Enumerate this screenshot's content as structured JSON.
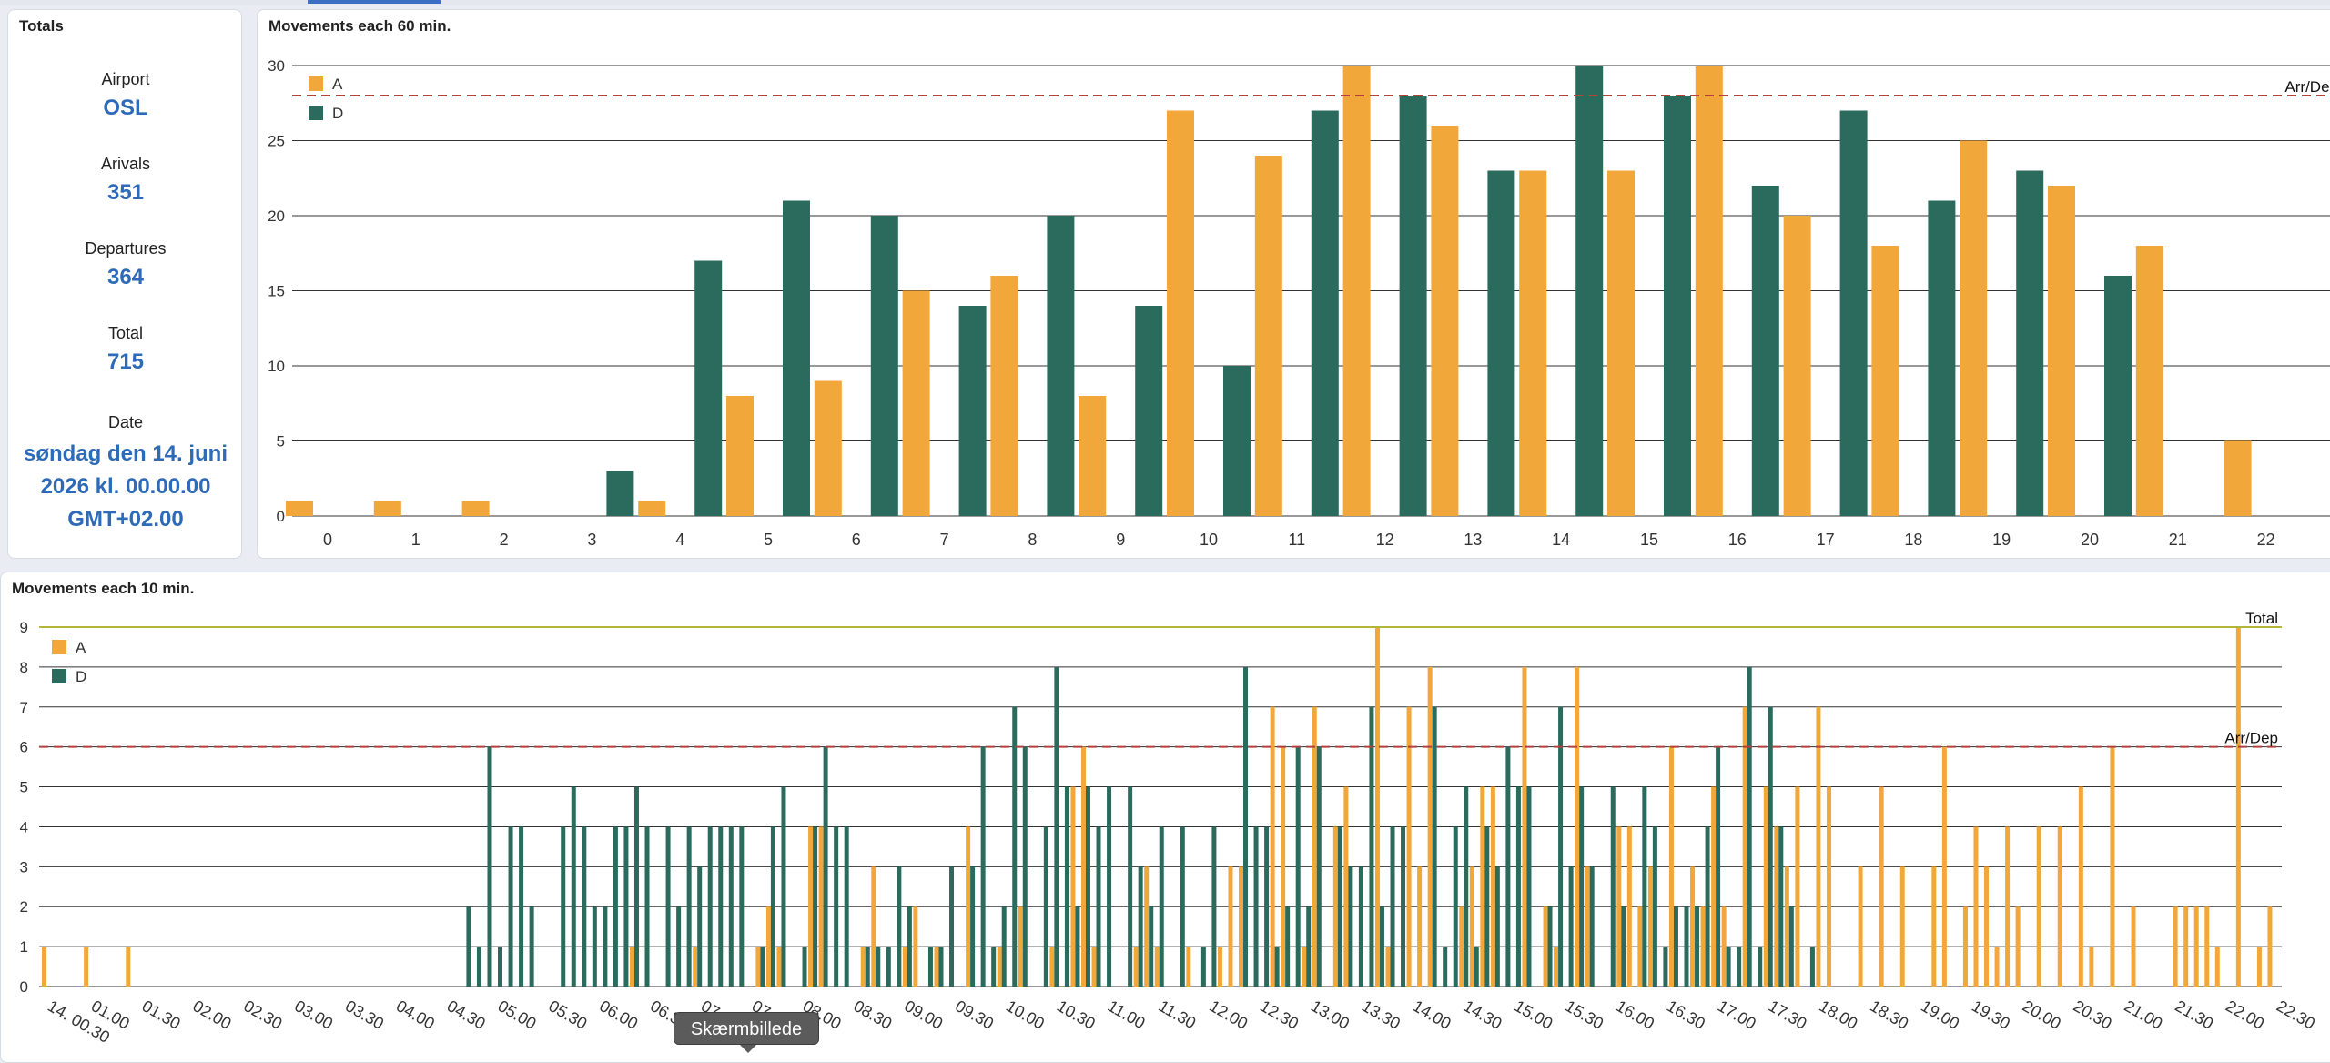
{
  "totals": {
    "title": "Totals",
    "airport_label": "Airport",
    "airport_value": "OSL",
    "arrivals_label": "Arivals",
    "arrivals_value": "351",
    "departures_label": "Departures",
    "departures_value": "364",
    "total_label": "Total",
    "total_value": "715",
    "date_label": "Date",
    "date_line1": "søndag den 14. juni",
    "date_line2": "2026 kl. 00.00.00",
    "date_line3": "GMT+02.00"
  },
  "hourly_title": "Movements each 60 min.",
  "tenmin_title": "Movements each 10 min.",
  "tooltip": {
    "label": "Skærmbillede"
  },
  "chart_data": [
    {
      "type": "bar",
      "title": "Movements each 60 min.",
      "categories": [
        "0",
        "1",
        "2",
        "3",
        "4",
        "5",
        "6",
        "7",
        "8",
        "9",
        "10",
        "11",
        "12",
        "13",
        "14",
        "15",
        "16",
        "17",
        "18",
        "19",
        "20",
        "21",
        "22"
      ],
      "series": [
        {
          "name": "A",
          "values": [
            1,
            1,
            1,
            0,
            1,
            8,
            9,
            15,
            16,
            8,
            27,
            24,
            30,
            26,
            23,
            23,
            30,
            20,
            18,
            25,
            22,
            18,
            5
          ]
        },
        {
          "name": "D",
          "values": [
            0,
            0,
            0,
            3,
            17,
            21,
            20,
            14,
            20,
            14,
            10,
            27,
            28,
            23,
            30,
            28,
            22,
            27,
            21,
            23,
            16,
            0,
            0
          ]
        }
      ],
      "ylim": [
        0,
        30
      ],
      "yticks": [
        0,
        5,
        10,
        15,
        20,
        25,
        30
      ],
      "reference_lines": [
        {
          "label": "Arr/Dep",
          "value": 28,
          "style": "dashed",
          "color": "#b0413e"
        }
      ],
      "legend_position": "top-left",
      "colors": {
        "A": "#f2a73b",
        "D": "#2b6b5e"
      },
      "grid": true
    },
    {
      "type": "bar",
      "title": "Movements each 10 min.",
      "x_labels": [
        "14. 00.30",
        "01.00",
        "01.30",
        "02.00",
        "02.30",
        "03.00",
        "03.30",
        "04.00",
        "04.30",
        "05.00",
        "05.30",
        "06.00",
        "06.30",
        "07.00",
        "07.30",
        "08.00",
        "08.30",
        "09.00",
        "09.30",
        "10.00",
        "10.30",
        "11.00",
        "11.30",
        "12.00",
        "12.30",
        "13.00",
        "13.30",
        "14.00",
        "14.30",
        "15.00",
        "15.30",
        "16.00",
        "16.30",
        "17.00",
        "17.30",
        "18.00",
        "18.30",
        "19.00",
        "19.30",
        "20.00",
        "20.30",
        "21.00",
        "21.30",
        "22.00",
        "22.30"
      ],
      "series": [
        {
          "name": "A",
          "values": [
            1,
            0,
            0,
            0,
            1,
            0,
            0,
            0,
            1,
            0,
            0,
            0,
            0,
            0,
            0,
            0,
            0,
            0,
            0,
            0,
            0,
            0,
            0,
            0,
            0,
            0,
            0,
            0,
            0,
            0,
            0,
            0,
            0,
            0,
            0,
            0,
            0,
            0,
            0,
            0,
            0,
            0,
            0,
            0,
            0,
            0,
            0,
            0,
            0,
            0,
            0,
            0,
            0,
            0,
            0,
            0,
            1,
            0,
            0,
            0,
            0,
            0,
            1,
            0,
            0,
            0,
            0,
            0,
            1,
            2,
            1,
            0,
            0,
            4,
            4,
            0,
            0,
            0,
            1,
            3,
            0,
            0,
            1,
            2,
            0,
            1,
            0,
            0,
            4,
            0,
            0,
            1,
            0,
            2,
            0,
            0,
            1,
            0,
            5,
            6,
            1,
            0,
            0,
            0,
            1,
            3,
            1,
            0,
            0,
            1,
            0,
            0,
            1,
            3,
            3,
            0,
            0,
            7,
            6,
            0,
            1,
            7,
            0,
            4,
            5,
            0,
            0,
            9,
            1,
            0,
            7,
            3,
            8,
            0,
            0,
            2,
            3,
            5,
            5,
            0,
            0,
            8,
            0,
            2,
            1,
            0,
            8,
            3,
            0,
            0,
            4,
            4,
            2,
            3,
            0,
            6,
            0,
            3,
            2,
            5,
            2,
            0,
            7,
            0,
            5,
            4,
            3,
            5,
            0,
            7,
            5,
            0,
            0,
            3,
            0,
            5,
            0,
            3,
            0,
            0,
            3,
            6,
            0,
            2,
            4,
            3,
            1,
            4,
            2,
            0,
            4,
            0,
            4,
            0,
            5,
            1,
            0,
            6,
            0,
            2,
            0,
            0,
            0,
            2,
            2,
            2,
            2,
            1,
            0,
            9,
            0,
            1,
            2
          ]
        },
        {
          "name": "D",
          "values": [
            0,
            0,
            0,
            0,
            0,
            0,
            0,
            0,
            0,
            0,
            0,
            0,
            0,
            0,
            0,
            0,
            0,
            0,
            0,
            0,
            0,
            0,
            0,
            0,
            0,
            0,
            0,
            0,
            0,
            0,
            0,
            0,
            0,
            0,
            0,
            0,
            0,
            0,
            0,
            0,
            2,
            1,
            6,
            1,
            4,
            4,
            2,
            0,
            0,
            4,
            5,
            4,
            2,
            2,
            4,
            4,
            5,
            4,
            0,
            4,
            2,
            4,
            3,
            4,
            4,
            4,
            4,
            0,
            1,
            4,
            5,
            0,
            1,
            4,
            6,
            4,
            4,
            0,
            1,
            1,
            1,
            3,
            2,
            0,
            1,
            1,
            3,
            0,
            3,
            6,
            1,
            2,
            7,
            6,
            0,
            4,
            8,
            5,
            2,
            5,
            4,
            5,
            0,
            5,
            3,
            2,
            4,
            0,
            4,
            0,
            1,
            4,
            0,
            0,
            8,
            4,
            4,
            1,
            2,
            6,
            2,
            6,
            0,
            4,
            3,
            3,
            7,
            2,
            4,
            4,
            0,
            0,
            7,
            1,
            4,
            5,
            1,
            4,
            3,
            6,
            5,
            5,
            0,
            2,
            7,
            3,
            5,
            3,
            0,
            5,
            2,
            0,
            5,
            4,
            1,
            2,
            2,
            2,
            4,
            6,
            1,
            1,
            8,
            1,
            7,
            4,
            2,
            0,
            1,
            0,
            0,
            0,
            0,
            0,
            0,
            0,
            0,
            0,
            0,
            0,
            0,
            0,
            0,
            0,
            0,
            0,
            0,
            0,
            0,
            0,
            0,
            0,
            0,
            0,
            0,
            0,
            0,
            0,
            0,
            0,
            0,
            0,
            0,
            0,
            0,
            0
          ]
        }
      ],
      "ylim": [
        0,
        9
      ],
      "yticks": [
        0,
        1,
        2,
        3,
        4,
        5,
        6,
        7,
        8,
        9
      ],
      "reference_lines": [
        {
          "label": "Arr/Dep",
          "value": 6,
          "style": "dashed",
          "color": "#b0413e"
        },
        {
          "label": "Total",
          "value": 9,
          "style": "solid",
          "color": "#b5b536"
        }
      ],
      "legend_position": "top-left",
      "colors": {
        "A": "#f2a73b",
        "D": "#2b6b5e"
      },
      "grid": true
    }
  ]
}
